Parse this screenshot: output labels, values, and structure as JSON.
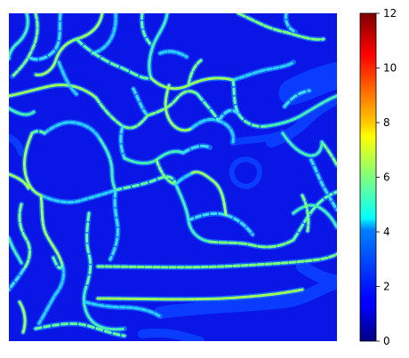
{
  "chart_data": {
    "type": "heatmap",
    "title": "",
    "xlabel": "",
    "ylabel": "",
    "axes_visible": false,
    "colormap": "jet",
    "background_value": 1.2,
    "colorbar": {
      "orientation": "vertical",
      "position": "right",
      "range": [
        0,
        12
      ],
      "ticks": [
        0,
        2,
        4,
        6,
        8,
        10,
        12
      ],
      "tick_labels": [
        "0",
        "2",
        "4",
        "6",
        "8",
        "10",
        "12"
      ]
    },
    "description_values": {
      "network_edge_value_range": [
        3,
        7
      ],
      "wide_band_value": 2
    }
  }
}
